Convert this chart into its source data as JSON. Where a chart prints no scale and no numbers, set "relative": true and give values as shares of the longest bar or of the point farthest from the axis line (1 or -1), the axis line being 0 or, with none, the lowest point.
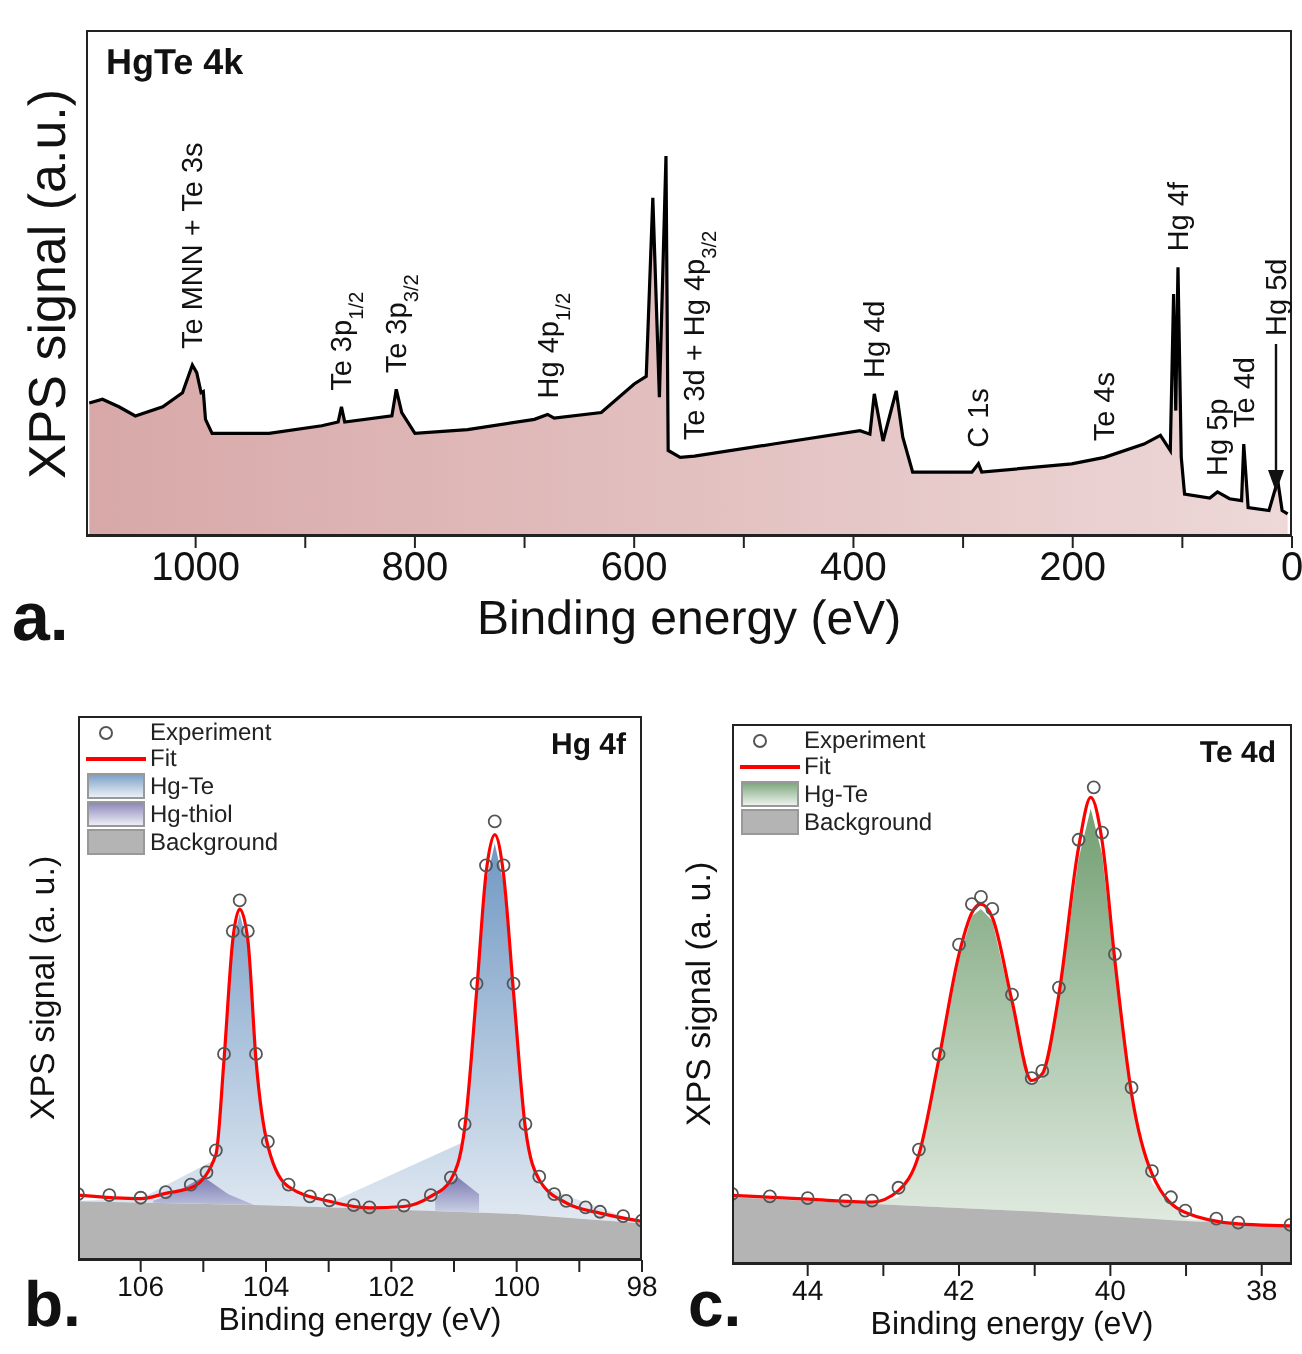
{
  "chart_data": [
    {
      "type": "area",
      "title": "HgTe 4k",
      "xlabel": "Binding energy (eV)",
      "ylabel": "XPS signal (a.u.)",
      "relative": true,
      "legend": false,
      "xlim": [
        1100,
        0
      ],
      "xticks": [
        1000,
        {
          "value": 900,
          "label": null
        },
        800,
        {
          "value": 700,
          "label": null
        },
        600,
        {
          "value": 500,
          "label": null
        },
        400,
        {
          "value": 300,
          "label": null
        },
        200,
        {
          "value": 100,
          "label": null
        },
        0
      ],
      "series": [
        {
          "color": "#d8a8a8",
          "x": [
            1097,
            1085,
            1070,
            1055,
            1030,
            1012,
            1003,
            999,
            995,
            993,
            991,
            985,
            933,
            885,
            870,
            867,
            864,
            821,
            817,
            812,
            800,
            752,
            691,
            679,
            673,
            630,
            600,
            589,
            583,
            577,
            571,
            569,
            558,
            545,
            473,
            394,
            385,
            381,
            373,
            361,
            355,
            346,
            292,
            286,
            283,
            201,
            171,
            135,
            120,
            111,
            108,
            106,
            104,
            101,
            98,
            75,
            68,
            57,
            46,
            44,
            40,
            21,
            13,
            9,
            4
          ],
          "values": [
            0.35,
            0.36,
            0.34,
            0.316,
            0.34,
            0.377,
            0.45,
            0.43,
            0.377,
            0.38,
            0.307,
            0.27,
            0.27,
            0.29,
            0.3,
            0.34,
            0.3,
            0.316,
            0.386,
            0.325,
            0.27,
            0.28,
            0.307,
            0.32,
            0.31,
            0.325,
            0.4,
            0.42,
            0.89,
            0.365,
            1.0,
            0.225,
            0.207,
            0.21,
            0.242,
            0.277,
            0.268,
            0.374,
            0.25,
            0.382,
            0.26,
            0.168,
            0.168,
            0.19,
            0.168,
            0.19,
            0.207,
            0.242,
            0.265,
            0.225,
            0.637,
            0.33,
            0.707,
            0.207,
            0.11,
            0.1,
            0.116,
            0.098,
            0.093,
            0.242,
            0.075,
            0.067,
            0.146,
            0.067,
            0.058
          ]
        }
      ],
      "annotations": [
        {
          "text": "Te MNN + Te 3s",
          "x": 1003,
          "y": 0.45
        },
        {
          "text": "Te 3p$_{1/2}$",
          "x": 867,
          "y": 0.34
        },
        {
          "text": "Te 3p$_{3/2}$",
          "x": 817,
          "y": 0.386
        },
        {
          "text": "Hg 4p$_{1/2}$",
          "x": 679,
          "y": 0.32
        },
        {
          "text": "Te 3d + Hg 4p$_{3/2}$",
          "x": 545,
          "y": 0.21
        },
        {
          "text": "Hg 4d",
          "x": 381,
          "y": 0.374
        },
        {
          "text": "C 1s",
          "x": 286,
          "y": 0.19
        },
        {
          "text": "Te 4s",
          "x": 171,
          "y": 0.207
        },
        {
          "text": "Hg 4f",
          "x": 104,
          "y": 0.707
        },
        {
          "text": "Hg 5p",
          "x": 68,
          "y": 0.116
        },
        {
          "text": "Te 4d",
          "x": 44,
          "y": 0.242
        },
        "Hg 5d",
        "a."
      ]
    },
    {
      "type": "area",
      "title": "Hg 4f",
      "xlabel": "Binding energy (eV)",
      "ylabel": "XPS signal (a. u.)",
      "relative": true,
      "legend": "top left",
      "xlim": [
        107,
        98
      ],
      "xticks": [
        106,
        {
          "value": 105,
          "label": null
        },
        104,
        {
          "value": 103,
          "label": null
        },
        102,
        {
          "value": 101,
          "label": null
        },
        100,
        {
          "value": 99,
          "label": null
        },
        98
      ],
      "series": [
        {
          "name": "Experiment",
          "type": "scatter",
          "marker": "circle",
          "color": "#555555",
          "x": [
            107,
            106.5,
            106,
            105.6,
            105.2,
            104.95,
            104.8,
            104.67,
            104.53,
            104.42,
            104.29,
            104.16,
            103.97,
            103.64,
            103.3,
            102.99,
            102.6,
            102.35,
            101.8,
            101.37,
            101.05,
            100.83,
            100.64,
            100.49,
            100.35,
            100.21,
            100.05,
            99.86,
            99.64,
            99.4,
            99.21,
            98.9,
            98.67,
            98.3,
            98
          ],
          "values": [
            0.15,
            0.148,
            0.142,
            0.155,
            0.172,
            0.2,
            0.25,
            0.47,
            0.75,
            0.82,
            0.75,
            0.47,
            0.27,
            0.172,
            0.145,
            0.136,
            0.125,
            0.12,
            0.124,
            0.148,
            0.188,
            0.31,
            0.63,
            0.9,
            1.0,
            0.9,
            0.63,
            0.31,
            0.19,
            0.15,
            0.135,
            0.12,
            0.11,
            0.1,
            0.09
          ]
        },
        {
          "name": "Fit",
          "type": "line",
          "line_style": "solid",
          "color": "#ff0000",
          "x": [
            107,
            106,
            105.6,
            105.16,
            104.8,
            104.67,
            104.53,
            104.42,
            104.29,
            104.16,
            103.97,
            103.64,
            102.99,
            102.35,
            101.8,
            101.37,
            101.05,
            100.83,
            100.64,
            100.49,
            100.35,
            100.21,
            100.05,
            99.86,
            99.64,
            99.21,
            98.67,
            98
          ],
          "values": [
            0.148,
            0.14,
            0.152,
            0.167,
            0.24,
            0.457,
            0.73,
            0.8,
            0.73,
            0.457,
            0.26,
            0.167,
            0.134,
            0.119,
            0.122,
            0.145,
            0.183,
            0.3,
            0.61,
            0.88,
            0.97,
            0.88,
            0.61,
            0.3,
            0.183,
            0.13,
            0.107,
            0.088
          ]
        },
        {
          "name": "Hg-Te",
          "type": "area",
          "color": "#6a93c0",
          "x": [
            107,
            106,
            104.8,
            104.67,
            104.53,
            104.42,
            104.29,
            104.16,
            103.97,
            103.64,
            102.99,
            100.83,
            100.64,
            100.49,
            100.35,
            100.21,
            100.05,
            99.86,
            99.64,
            98
          ],
          "values": [
            0.135,
            0.14,
            0.23,
            0.44,
            0.72,
            0.79,
            0.72,
            0.44,
            0.25,
            0.16,
            0.13,
            0.27,
            0.59,
            0.86,
            0.95,
            0.86,
            0.59,
            0.28,
            0.17,
            0.084
          ]
        },
        {
          "name": "Hg-thiol",
          "type": "area",
          "color": "#7a76b0",
          "x": [
            105.8,
            105.5,
            105.0,
            104.6,
            104.2,
            103,
            101.3,
            100.95,
            100.6
          ],
          "values": [
            0.135,
            0.15,
            0.19,
            0.15,
            0.126,
            null,
            0.14,
            0.19,
            0.15
          ]
        },
        {
          "name": "Background",
          "type": "area",
          "color": "#b4b4b4",
          "x": [
            107,
            104,
            102,
            100,
            98
          ],
          "values": [
            0.134,
            0.125,
            0.115,
            0.105,
            0.084
          ]
        }
      ],
      "annotations": [
        "b."
      ]
    },
    {
      "type": "area",
      "title": "Te 4d",
      "xlabel": "Binding energy (eV)",
      "ylabel": "XPS signal (a. u.)",
      "relative": true,
      "legend": "top left",
      "xlim": [
        45,
        37.6
      ],
      "xticks": [
        44,
        {
          "value": 43,
          "label": null
        },
        42,
        {
          "value": 41,
          "label": null
        },
        40,
        {
          "value": 39,
          "label": null
        },
        38
      ],
      "series": [
        {
          "name": "Experiment",
          "type": "scatter",
          "marker": "circle",
          "color": "#555555",
          "x": [
            45,
            44.5,
            44,
            43.5,
            43.15,
            42.8,
            42.53,
            42.27,
            42,
            41.83,
            41.71,
            41.56,
            41.3,
            41.04,
            40.9,
            40.68,
            40.42,
            40.22,
            40.11,
            39.94,
            39.72,
            39.45,
            39.2,
            39.01,
            38.6,
            38.31,
            37.62
          ],
          "values": [
            0.147,
            0.142,
            0.138,
            0.133,
            0.133,
            0.16,
            0.24,
            0.44,
            0.67,
            0.755,
            0.77,
            0.745,
            0.565,
            0.39,
            0.405,
            0.58,
            0.89,
            1.0,
            0.905,
            0.65,
            0.37,
            0.195,
            0.14,
            0.112,
            0.095,
            0.087,
            0.082
          ]
        },
        {
          "name": "Fit",
          "type": "line",
          "line_style": "solid",
          "color": "#ff0000",
          "x": [
            45,
            44,
            43.15,
            42.8,
            42.53,
            42.27,
            42,
            41.83,
            41.71,
            41.56,
            41.3,
            41.04,
            40.9,
            40.68,
            40.42,
            40.26,
            40.11,
            39.94,
            39.72,
            39.45,
            39.01,
            38.31,
            37.62
          ],
          "values": [
            0.144,
            0.136,
            0.13,
            0.154,
            0.23,
            0.427,
            0.65,
            0.737,
            0.755,
            0.727,
            0.552,
            0.385,
            0.399,
            0.566,
            0.874,
            0.979,
            0.888,
            0.636,
            0.357,
            0.189,
            0.108,
            0.084,
            0.08
          ]
        },
        {
          "name": "Hg-Te",
          "type": "area",
          "color": "#6b9a6b",
          "x": [
            45,
            43.15,
            42.8,
            42.53,
            42.27,
            42,
            41.83,
            41.71,
            41.56,
            41.3,
            41.04,
            40.9,
            40.68,
            40.42,
            40.26,
            40.11,
            39.94,
            39.72,
            39.45,
            39.01,
            38.31,
            37.62
          ],
          "values": [
            0.14,
            0.125,
            0.14,
            0.22,
            0.42,
            0.64,
            0.73,
            0.745,
            0.72,
            0.54,
            0.375,
            0.39,
            0.555,
            0.85,
            0.955,
            0.86,
            0.62,
            0.34,
            0.17,
            0.095,
            0.085,
            0.08
          ]
        },
        {
          "name": "Background",
          "type": "area",
          "color": "#b4b4b4",
          "x": [
            45,
            41,
            39,
            37.62
          ],
          "values": [
            0.14,
            0.11,
            0.09,
            0.08
          ]
        }
      ],
      "annotations": [
        "c."
      ]
    }
  ]
}
